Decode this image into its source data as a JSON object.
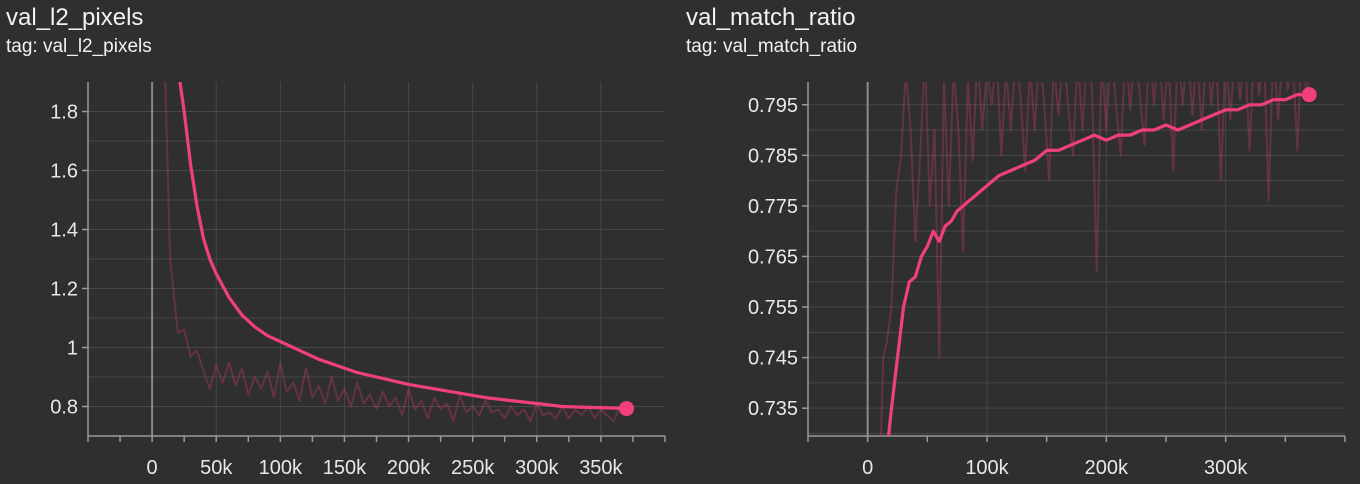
{
  "chart_data": [
    {
      "type": "line",
      "title": "val_l2_pixels",
      "subtitle": "tag: val_l2_pixels",
      "xlim": [
        -50000,
        400000
      ],
      "ylim": [
        0.7,
        1.9
      ],
      "xticks": [
        0,
        50000,
        100000,
        150000,
        200000,
        250000,
        300000,
        350000
      ],
      "xtick_labels": [
        "0",
        "50k",
        "100k",
        "150k",
        "200k",
        "250k",
        "300k",
        "350k"
      ],
      "yticks": [
        0.8,
        1.0,
        1.2,
        1.4,
        1.6,
        1.8
      ],
      "ytick_labels": [
        "0.8",
        "1",
        "1.2",
        "1.4",
        "1.6",
        "1.8"
      ],
      "grid": true,
      "color": "#f0407a",
      "series": [
        {
          "role": "raw",
          "x": [
            10000,
            14000,
            20000,
            25000,
            30000,
            35000,
            40000,
            45000,
            50000,
            55000,
            60000,
            65000,
            70000,
            75000,
            80000,
            85000,
            90000,
            95000,
            100000,
            105000,
            110000,
            115000,
            120000,
            125000,
            130000,
            135000,
            140000,
            145000,
            150000,
            155000,
            160000,
            165000,
            170000,
            175000,
            180000,
            185000,
            190000,
            195000,
            200000,
            205000,
            210000,
            215000,
            220000,
            225000,
            230000,
            235000,
            240000,
            245000,
            250000,
            255000,
            260000,
            265000,
            270000,
            275000,
            280000,
            285000,
            290000,
            295000,
            300000,
            305000,
            310000,
            315000,
            320000,
            325000,
            330000,
            335000,
            340000,
            345000,
            350000,
            355000,
            360000,
            365000,
            370000
          ],
          "y": [
            1.95,
            1.3,
            1.05,
            1.06,
            0.97,
            0.99,
            0.92,
            0.86,
            0.94,
            0.88,
            0.95,
            0.87,
            0.93,
            0.84,
            0.9,
            0.86,
            0.92,
            0.83,
            0.95,
            0.85,
            0.88,
            0.82,
            0.93,
            0.83,
            0.87,
            0.81,
            0.9,
            0.82,
            0.86,
            0.8,
            0.88,
            0.81,
            0.84,
            0.79,
            0.85,
            0.8,
            0.83,
            0.77,
            0.86,
            0.79,
            0.82,
            0.76,
            0.83,
            0.79,
            0.81,
            0.75,
            0.84,
            0.78,
            0.8,
            0.77,
            0.82,
            0.78,
            0.79,
            0.76,
            0.8,
            0.77,
            0.79,
            0.75,
            0.81,
            0.77,
            0.78,
            0.76,
            0.8,
            0.76,
            0.79,
            0.77,
            0.8,
            0.76,
            0.79,
            0.77,
            0.75,
            0.8,
            0.78
          ]
        },
        {
          "role": "smoothed",
          "x": [
            20000,
            25000,
            30000,
            35000,
            40000,
            45000,
            50000,
            60000,
            70000,
            80000,
            90000,
            100000,
            110000,
            120000,
            130000,
            140000,
            150000,
            160000,
            175000,
            190000,
            200000,
            220000,
            240000,
            260000,
            280000,
            300000,
            320000,
            340000,
            360000,
            370000
          ],
          "y": [
            1.95,
            1.8,
            1.62,
            1.48,
            1.37,
            1.3,
            1.25,
            1.17,
            1.11,
            1.07,
            1.04,
            1.02,
            1.0,
            0.98,
            0.96,
            0.945,
            0.93,
            0.915,
            0.9,
            0.885,
            0.875,
            0.86,
            0.845,
            0.83,
            0.82,
            0.81,
            0.8,
            0.797,
            0.795,
            0.793
          ]
        }
      ]
    },
    {
      "type": "line",
      "title": "val_match_ratio",
      "subtitle": "tag: val_match_ratio",
      "xlim": [
        -50000,
        400000
      ],
      "ylim": [
        0.7295,
        0.7995
      ],
      "xticks": [
        0,
        100000,
        200000,
        300000
      ],
      "xtick_labels": [
        "0",
        "100k",
        "200k",
        "300k"
      ],
      "yticks": [
        0.735,
        0.745,
        0.755,
        0.765,
        0.775,
        0.785,
        0.795
      ],
      "ytick_labels": [
        "0.735",
        "0.745",
        "0.755",
        "0.765",
        "0.775",
        "0.785",
        "0.795"
      ],
      "grid": true,
      "color": "#f0407a",
      "series": [
        {
          "role": "raw",
          "x": [
            10000,
            13000,
            16000,
            20000,
            24000,
            28000,
            32000,
            36000,
            40000,
            44000,
            48000,
            52000,
            56000,
            60000,
            64000,
            68000,
            72000,
            76000,
            80000,
            84000,
            88000,
            92000,
            96000,
            100000,
            104000,
            108000,
            112000,
            116000,
            120000,
            124000,
            128000,
            132000,
            136000,
            140000,
            144000,
            148000,
            152000,
            156000,
            160000,
            164000,
            168000,
            172000,
            176000,
            180000,
            184000,
            188000,
            192000,
            196000,
            200000,
            204000,
            208000,
            212000,
            216000,
            220000,
            224000,
            228000,
            232000,
            236000,
            240000,
            244000,
            248000,
            252000,
            256000,
            260000,
            264000,
            268000,
            272000,
            276000,
            280000,
            284000,
            288000,
            292000,
            296000,
            300000,
            304000,
            308000,
            312000,
            316000,
            320000,
            324000,
            328000,
            332000,
            336000,
            340000,
            344000,
            348000,
            352000,
            356000,
            360000,
            364000,
            368000,
            372000
          ],
          "y": [
            0.72,
            0.745,
            0.748,
            0.755,
            0.778,
            0.785,
            0.802,
            0.79,
            0.768,
            0.785,
            0.805,
            0.775,
            0.79,
            0.745,
            0.8,
            0.775,
            0.802,
            0.79,
            0.766,
            0.8,
            0.784,
            0.805,
            0.79,
            0.802,
            0.795,
            0.805,
            0.785,
            0.802,
            0.79,
            0.805,
            0.797,
            0.782,
            0.803,
            0.79,
            0.806,
            0.795,
            0.78,
            0.803,
            0.793,
            0.806,
            0.795,
            0.785,
            0.805,
            0.79,
            0.806,
            0.798,
            0.762,
            0.805,
            0.79,
            0.807,
            0.795,
            0.785,
            0.806,
            0.794,
            0.807,
            0.797,
            0.787,
            0.806,
            0.795,
            0.807,
            0.792,
            0.805,
            0.782,
            0.806,
            0.795,
            0.807,
            0.793,
            0.805,
            0.79,
            0.807,
            0.795,
            0.806,
            0.78,
            0.806,
            0.792,
            0.807,
            0.796,
            0.806,
            0.786,
            0.807,
            0.797,
            0.806,
            0.776,
            0.807,
            0.792,
            0.806,
            0.798,
            0.806,
            0.786,
            0.807,
            0.796,
            0.806
          ]
        },
        {
          "role": "smoothed",
          "x": [
            15000,
            20000,
            25000,
            30000,
            35000,
            40000,
            45000,
            50000,
            55000,
            60000,
            65000,
            70000,
            75000,
            80000,
            85000,
            90000,
            95000,
            100000,
            110000,
            120000,
            130000,
            140000,
            150000,
            160000,
            170000,
            180000,
            190000,
            200000,
            210000,
            220000,
            230000,
            240000,
            250000,
            260000,
            270000,
            280000,
            290000,
            300000,
            310000,
            320000,
            330000,
            340000,
            350000,
            360000,
            370000
          ],
          "y": [
            0.724,
            0.735,
            0.745,
            0.755,
            0.76,
            0.761,
            0.765,
            0.767,
            0.77,
            0.768,
            0.771,
            0.772,
            0.774,
            0.775,
            0.776,
            0.777,
            0.778,
            0.779,
            0.781,
            0.782,
            0.783,
            0.784,
            0.786,
            0.786,
            0.787,
            0.788,
            0.789,
            0.788,
            0.789,
            0.789,
            0.79,
            0.79,
            0.791,
            0.79,
            0.791,
            0.792,
            0.793,
            0.794,
            0.794,
            0.795,
            0.795,
            0.796,
            0.796,
            0.797,
            0.797
          ]
        }
      ]
    }
  ]
}
